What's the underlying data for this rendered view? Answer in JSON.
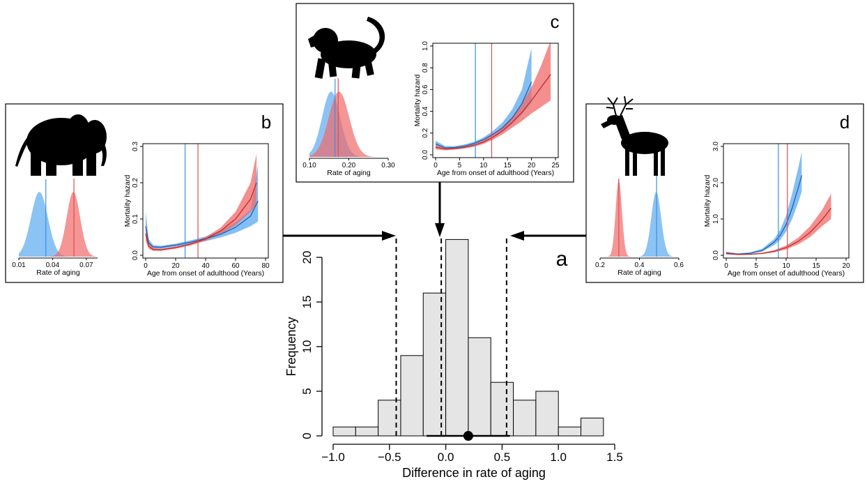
{
  "chart_data": [
    {
      "panel": "a",
      "type": "bar",
      "xlabel": "Difference in rate of aging",
      "ylabel": "Frequency",
      "xlim": [
        -1.0,
        1.5
      ],
      "ylim": [
        0,
        22
      ],
      "x_ticks": [
        -1.0,
        -0.5,
        0.0,
        0.5,
        1.0,
        1.5
      ],
      "x_tick_labels": [
        "−1.0",
        "−0.5",
        "0.0",
        "0.5",
        "1.0",
        "1.5"
      ],
      "y_ticks": [
        0,
        5,
        10,
        15,
        20
      ],
      "y_tick_labels": [
        "0",
        "5",
        "10",
        "15",
        "20"
      ],
      "bins": [
        {
          "from": -1.0,
          "to": -0.8,
          "count": 1
        },
        {
          "from": -0.8,
          "to": -0.6,
          "count": 1
        },
        {
          "from": -0.6,
          "to": -0.4,
          "count": 4
        },
        {
          "from": -0.4,
          "to": -0.2,
          "count": 9
        },
        {
          "from": -0.2,
          "to": 0.0,
          "count": 16
        },
        {
          "from": 0.0,
          "to": 0.2,
          "count": 22
        },
        {
          "from": 0.2,
          "to": 0.4,
          "count": 11
        },
        {
          "from": 0.4,
          "to": 0.6,
          "count": 6
        },
        {
          "from": 0.6,
          "to": 0.8,
          "count": 4
        },
        {
          "from": 0.8,
          "to": 1.0,
          "count": 5
        },
        {
          "from": 1.0,
          "to": 1.2,
          "count": 1
        },
        {
          "from": 1.2,
          "to": 1.4,
          "count": 2
        }
      ],
      "mean": 0.2,
      "interval": [
        -0.17,
        0.57
      ],
      "reference_lines": [
        -0.44,
        -0.04,
        0.54
      ],
      "bar_color": "#e5e5e5"
    },
    {
      "panel": "b",
      "type": "line",
      "silhouette": "elephant-icon",
      "xlabel": "Age from onset of adulthood (Years)",
      "ylabel": "Mortality hazard",
      "xlim": [
        0,
        80
      ],
      "ylim": [
        0,
        0.3
      ],
      "x_ticks": [
        0,
        20,
        40,
        60,
        80
      ],
      "y_ticks": [
        0.0,
        0.1,
        0.2,
        0.3
      ],
      "y_tick_labels": [
        "0.0",
        "0.1",
        "0.2",
        "0.3"
      ],
      "vlines": {
        "blue": 26.3,
        "red": 34.9
      },
      "blue_band": [
        [
          0,
          0.12,
          0.05
        ],
        [
          2,
          0.045,
          0.027
        ],
        [
          5,
          0.028,
          0.018
        ],
        [
          10,
          0.026,
          0.018
        ],
        [
          20,
          0.032,
          0.024
        ],
        [
          30,
          0.041,
          0.031
        ],
        [
          40,
          0.052,
          0.039
        ],
        [
          50,
          0.068,
          0.049
        ],
        [
          60,
          0.091,
          0.062
        ],
        [
          70,
          0.125,
          0.08
        ],
        [
          75,
          0.25,
          0.093
        ]
      ],
      "blue_line": [
        [
          0,
          0.08
        ],
        [
          2,
          0.034
        ],
        [
          5,
          0.023
        ],
        [
          10,
          0.022
        ],
        [
          20,
          0.028
        ],
        [
          30,
          0.036
        ],
        [
          40,
          0.046
        ],
        [
          50,
          0.058
        ],
        [
          60,
          0.077
        ],
        [
          70,
          0.108
        ],
        [
          75,
          0.15
        ]
      ],
      "red_band": [
        [
          0,
          0.09,
          0.04
        ],
        [
          2,
          0.035,
          0.018
        ],
        [
          5,
          0.02,
          0.012
        ],
        [
          10,
          0.018,
          0.012
        ],
        [
          20,
          0.024,
          0.018
        ],
        [
          30,
          0.034,
          0.027
        ],
        [
          40,
          0.05,
          0.04
        ],
        [
          50,
          0.076,
          0.058
        ],
        [
          60,
          0.12,
          0.083
        ],
        [
          70,
          0.2,
          0.12
        ],
        [
          74,
          0.28,
          0.14
        ]
      ],
      "red_line": [
        [
          0,
          0.06
        ],
        [
          2,
          0.025
        ],
        [
          5,
          0.016
        ],
        [
          10,
          0.015
        ],
        [
          20,
          0.021
        ],
        [
          30,
          0.031
        ],
        [
          40,
          0.045
        ],
        [
          50,
          0.067
        ],
        [
          60,
          0.1
        ],
        [
          70,
          0.155
        ],
        [
          74,
          0.2
        ]
      ],
      "density": {
        "xlabel": "Rate of aging",
        "xlim": [
          0.01,
          0.08
        ],
        "x_ticks": [
          0.01,
          0.04,
          0.07
        ],
        "x_tick_labels": [
          "0.01",
          "0.04",
          "0.07"
        ],
        "blue": {
          "mean": 0.0283,
          "sd": 0.0075,
          "vline": 0.034
        },
        "red": {
          "mean": 0.0585,
          "sd": 0.006,
          "vline": 0.059
        }
      }
    },
    {
      "panel": "c",
      "type": "line",
      "silhouette": "baboon-icon",
      "xlabel": "Age from onset of adulthood (Years)",
      "ylabel": "Mortality hazard",
      "xlim": [
        0,
        25
      ],
      "ylim": [
        0,
        1.0
      ],
      "x_ticks": [
        0,
        5,
        10,
        15,
        20,
        25
      ],
      "y_ticks": [
        0.0,
        0.2,
        0.4,
        0.6,
        0.8,
        1.0
      ],
      "y_tick_labels": [
        "0.0",
        "0.2",
        "0.4",
        "0.6",
        "0.8",
        "1.0"
      ],
      "vlines": {
        "blue": 8.3,
        "red": 11.7
      },
      "blue_band": [
        [
          0,
          0.13,
          0.07
        ],
        [
          2,
          0.08,
          0.05
        ],
        [
          4,
          0.08,
          0.055
        ],
        [
          6,
          0.095,
          0.068
        ],
        [
          8,
          0.12,
          0.09
        ],
        [
          10,
          0.16,
          0.12
        ],
        [
          12,
          0.22,
          0.16
        ],
        [
          14,
          0.3,
          0.21
        ],
        [
          16,
          0.42,
          0.28
        ],
        [
          18,
          0.6,
          0.37
        ],
        [
          20,
          0.98,
          0.48
        ]
      ],
      "blue_line": [
        [
          0,
          0.1
        ],
        [
          2,
          0.065
        ],
        [
          4,
          0.067
        ],
        [
          6,
          0.08
        ],
        [
          8,
          0.104
        ],
        [
          10,
          0.14
        ],
        [
          12,
          0.19
        ],
        [
          14,
          0.25
        ],
        [
          16,
          0.34
        ],
        [
          18,
          0.47
        ],
        [
          20,
          0.67
        ]
      ],
      "red_band": [
        [
          0,
          0.09,
          0.05
        ],
        [
          2,
          0.065,
          0.042
        ],
        [
          4,
          0.068,
          0.048
        ],
        [
          6,
          0.08,
          0.058
        ],
        [
          8,
          0.1,
          0.074
        ],
        [
          10,
          0.135,
          0.1
        ],
        [
          12,
          0.19,
          0.14
        ],
        [
          14,
          0.26,
          0.19
        ],
        [
          16,
          0.35,
          0.25
        ],
        [
          18,
          0.47,
          0.31
        ],
        [
          20,
          0.62,
          0.38
        ],
        [
          22,
          0.82,
          0.44
        ],
        [
          24,
          1.05,
          0.5
        ]
      ],
      "red_line": [
        [
          0,
          0.07
        ],
        [
          2,
          0.053
        ],
        [
          4,
          0.057
        ],
        [
          6,
          0.068
        ],
        [
          8,
          0.087
        ],
        [
          10,
          0.117
        ],
        [
          12,
          0.162
        ],
        [
          14,
          0.223
        ],
        [
          16,
          0.3
        ],
        [
          18,
          0.39
        ],
        [
          20,
          0.5
        ],
        [
          22,
          0.62
        ],
        [
          24,
          0.74
        ]
      ],
      "density": {
        "xlabel": "Rate of aging",
        "xlim": [
          0.1,
          0.3
        ],
        "x_ticks": [
          0.1,
          0.2,
          0.3
        ],
        "x_tick_labels": [
          "0.10",
          "0.20",
          "0.30"
        ],
        "blue": {
          "mean": 0.155,
          "sd": 0.023,
          "vline": 0.165
        },
        "red": {
          "mean": 0.175,
          "sd": 0.026,
          "vline": 0.173
        }
      }
    },
    {
      "panel": "d",
      "type": "line",
      "silhouette": "deer-icon",
      "xlabel": "Age from onset of adulthood (Years)",
      "ylabel": "Mortality hazard",
      "xlim": [
        0,
        20
      ],
      "ylim": [
        0,
        3.0
      ],
      "x_ticks": [
        0,
        5,
        10,
        15,
        20
      ],
      "y_ticks": [
        0.0,
        1.0,
        2.0,
        3.0
      ],
      "y_tick_labels": [
        "0.0",
        "1.0",
        "2.0",
        "3.0"
      ],
      "vlines": {
        "blue": 8.7,
        "red": 10.2
      },
      "blue_band": [
        [
          0,
          0.1,
          0.03
        ],
        [
          2,
          0.05,
          0.02
        ],
        [
          4,
          0.08,
          0.04
        ],
        [
          6,
          0.18,
          0.1
        ],
        [
          8,
          0.45,
          0.28
        ],
        [
          9,
          0.7,
          0.42
        ],
        [
          10,
          1.1,
          0.65
        ],
        [
          11,
          1.7,
          1.0
        ],
        [
          12,
          2.4,
          1.45
        ],
        [
          12.6,
          2.85,
          1.75
        ]
      ],
      "blue_line": [
        [
          0,
          0.06
        ],
        [
          2,
          0.03
        ],
        [
          4,
          0.055
        ],
        [
          6,
          0.13
        ],
        [
          8,
          0.36
        ],
        [
          9,
          0.55
        ],
        [
          10,
          0.85
        ],
        [
          11,
          1.3
        ],
        [
          12,
          1.85
        ],
        [
          12.6,
          2.2
        ]
      ],
      "red_band": [
        [
          0,
          0.08,
          0.02
        ],
        [
          2,
          0.03,
          0.01
        ],
        [
          4,
          0.04,
          0.015
        ],
        [
          6,
          0.07,
          0.035
        ],
        [
          8,
          0.14,
          0.08
        ],
        [
          10,
          0.27,
          0.16
        ],
        [
          12,
          0.48,
          0.3
        ],
        [
          14,
          0.8,
          0.5
        ],
        [
          16,
          1.25,
          0.8
        ],
        [
          17.5,
          1.7,
          1.0
        ]
      ],
      "red_line": [
        [
          0,
          0.05
        ],
        [
          2,
          0.02
        ],
        [
          4,
          0.027
        ],
        [
          6,
          0.05
        ],
        [
          8,
          0.11
        ],
        [
          10,
          0.21
        ],
        [
          12,
          0.38
        ],
        [
          14,
          0.63
        ],
        [
          16,
          0.98
        ],
        [
          17.5,
          1.3
        ]
      ],
      "density": {
        "xlabel": "Rate of aging",
        "xlim": [
          0.2,
          0.6
        ],
        "x_ticks": [
          0.2,
          0.4,
          0.6
        ],
        "x_tick_labels": [
          "0.2",
          "0.4",
          "0.6"
        ],
        "blue": {
          "mean": 0.485,
          "sd": 0.025,
          "vline": 0.487
        },
        "red": {
          "mean": 0.295,
          "sd": 0.016,
          "vline": 0.295
        }
      }
    }
  ],
  "colors": {
    "blue": "#3b8fe0",
    "blue_fill": "#5aaaf0",
    "red": "#e34b4b",
    "red_fill": "#f06a6a"
  }
}
